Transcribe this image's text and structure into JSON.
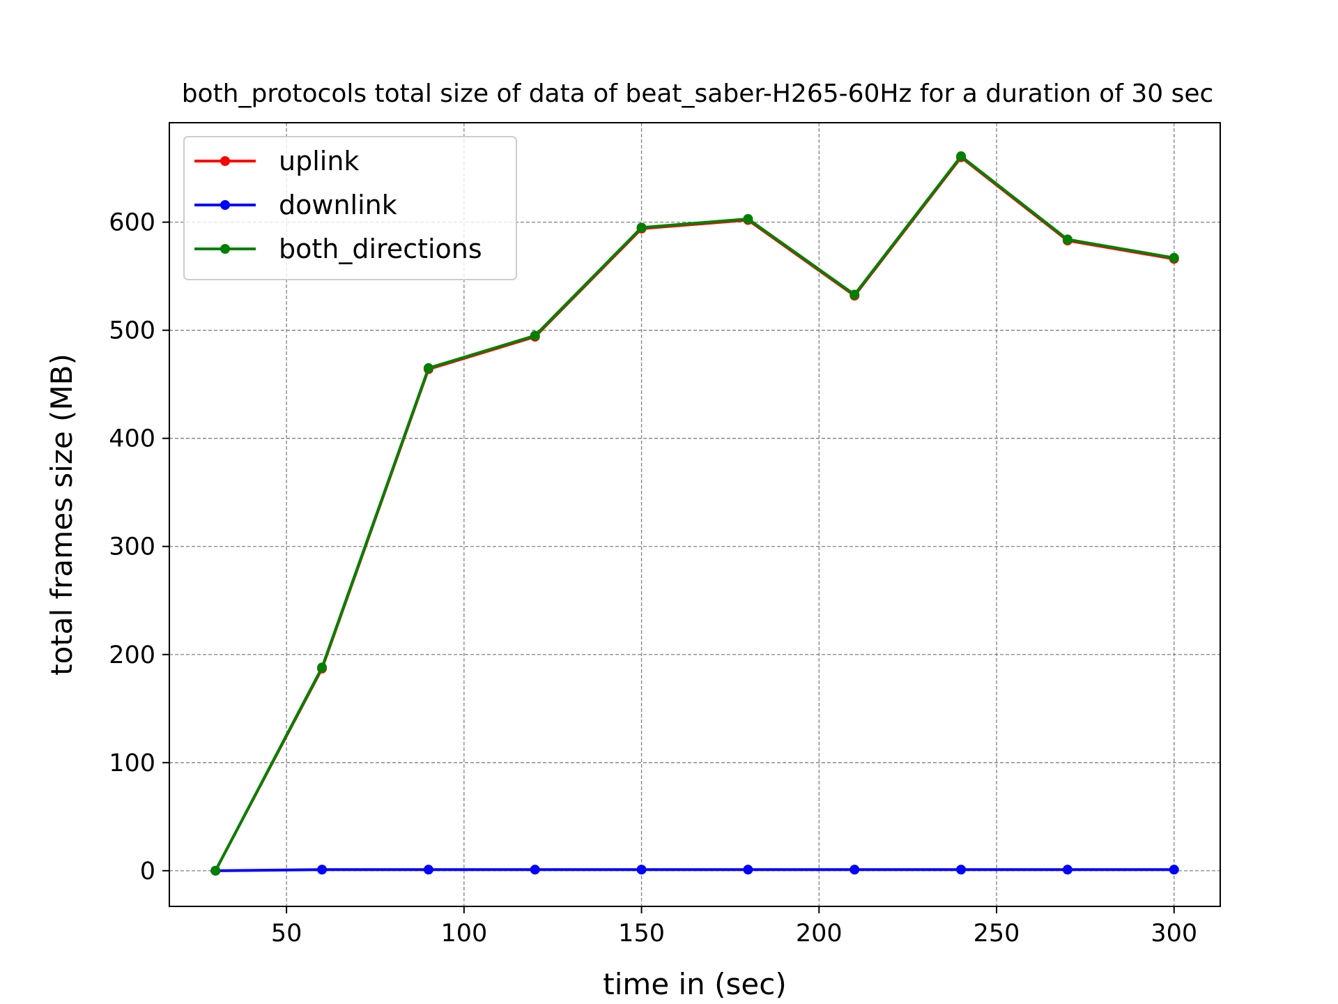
{
  "chart_data": {
    "type": "line",
    "title": "both_protocols total size of data of beat_saber-H265-60Hz for a duration of 30 sec",
    "xlabel": "time in (sec)",
    "ylabel": "total frames size (MB)",
    "x": [
      30,
      60,
      90,
      120,
      150,
      180,
      210,
      240,
      270,
      300
    ],
    "xlim": [
      17,
      313
    ],
    "ylim": [
      -33,
      692
    ],
    "xticks": [
      50,
      100,
      150,
      200,
      250,
      300
    ],
    "yticks": [
      0,
      100,
      200,
      300,
      400,
      500,
      600
    ],
    "grid": true,
    "legend_position": "upper-left",
    "series": [
      {
        "name": "uplink",
        "color": "#ff0000",
        "values": [
          0,
          187,
          464,
          494,
          594,
          602,
          532,
          660,
          583,
          566
        ]
      },
      {
        "name": "downlink",
        "color": "#0000ff",
        "values": [
          0,
          1,
          1,
          1,
          1,
          1,
          1,
          1,
          1,
          1
        ]
      },
      {
        "name": "both_directions",
        "color": "#008000",
        "values": [
          0,
          188,
          465,
          495,
          595,
          603,
          533,
          661,
          584,
          567
        ]
      }
    ]
  }
}
